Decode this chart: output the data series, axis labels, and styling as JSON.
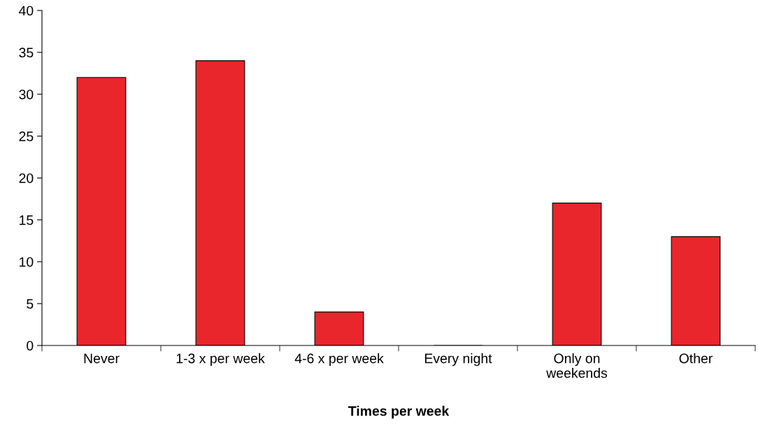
{
  "chart_data": {
    "type": "bar",
    "xlabel": "Times per week",
    "categories": [
      "Never",
      "1-3 x per week",
      "4-6 x per week",
      "Every night",
      "Only on\nweekends",
      "Other"
    ],
    "values": [
      32,
      34,
      4,
      0,
      17,
      13
    ],
    "color": "#e8262b",
    "ylim": [
      0,
      40
    ],
    "yticks": [
      0,
      5,
      10,
      15,
      20,
      25,
      30,
      35,
      40
    ],
    "grid": false
  }
}
